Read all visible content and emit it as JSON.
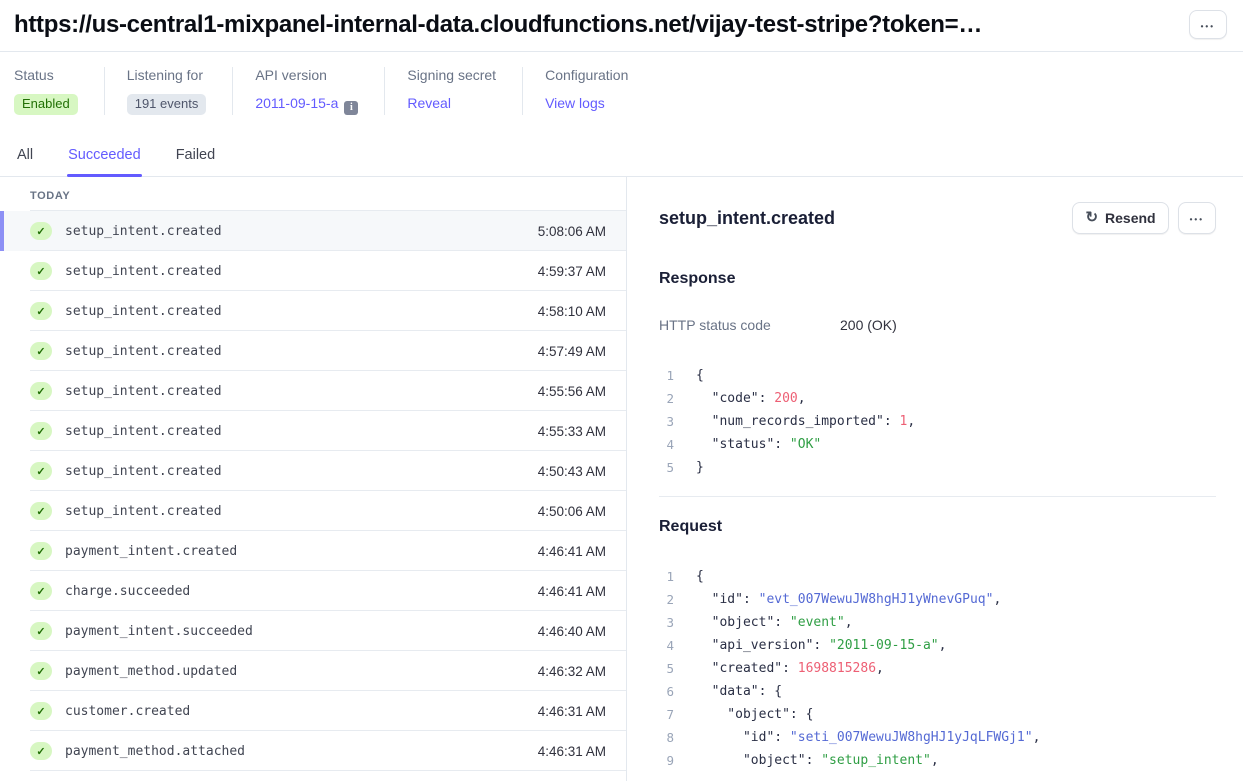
{
  "header": {
    "title": "https://us-central1-mixpanel-internal-data.cloudfunctions.net/vijay-test-stripe?token=…",
    "overflow_icon": "•••"
  },
  "meta": {
    "items": [
      {
        "name": "status",
        "label": "Status",
        "value": "Enabled",
        "kind": "badge-green"
      },
      {
        "name": "listening-for",
        "label": "Listening for",
        "value": "191 events",
        "kind": "badge-gray"
      },
      {
        "name": "api-version",
        "label": "API version",
        "value": "2011-09-15-a",
        "kind": "link",
        "info_icon": "i"
      },
      {
        "name": "signing-secret",
        "label": "Signing secret",
        "value": "Reveal",
        "kind": "link"
      },
      {
        "name": "configuration",
        "label": "Configuration",
        "value": "View logs",
        "kind": "link"
      }
    ]
  },
  "tabs": [
    {
      "name": "all",
      "label": "All",
      "active": false
    },
    {
      "name": "succeeded",
      "label": "Succeeded",
      "active": true
    },
    {
      "name": "failed",
      "label": "Failed",
      "active": false
    }
  ],
  "event_list": {
    "group_header": "TODAY",
    "check_icon": "✓",
    "rows": [
      {
        "event": "setup_intent.created",
        "time": "5:08:06 AM",
        "selected": true
      },
      {
        "event": "setup_intent.created",
        "time": "4:59:37 AM",
        "selected": false
      },
      {
        "event": "setup_intent.created",
        "time": "4:58:10 AM",
        "selected": false
      },
      {
        "event": "setup_intent.created",
        "time": "4:57:49 AM",
        "selected": false
      },
      {
        "event": "setup_intent.created",
        "time": "4:55:56 AM",
        "selected": false
      },
      {
        "event": "setup_intent.created",
        "time": "4:55:33 AM",
        "selected": false
      },
      {
        "event": "setup_intent.created",
        "time": "4:50:43 AM",
        "selected": false
      },
      {
        "event": "setup_intent.created",
        "time": "4:50:06 AM",
        "selected": false
      },
      {
        "event": "payment_intent.created",
        "time": "4:46:41 AM",
        "selected": false
      },
      {
        "event": "charge.succeeded",
        "time": "4:46:41 AM",
        "selected": false
      },
      {
        "event": "payment_intent.succeeded",
        "time": "4:46:40 AM",
        "selected": false
      },
      {
        "event": "payment_method.updated",
        "time": "4:46:32 AM",
        "selected": false
      },
      {
        "event": "customer.created",
        "time": "4:46:31 AM",
        "selected": false
      },
      {
        "event": "payment_method.attached",
        "time": "4:46:31 AM",
        "selected": false
      }
    ]
  },
  "detail": {
    "title": "setup_intent.created",
    "resend": {
      "icon": "↻",
      "label": "Resend"
    },
    "overflow_icon": "•••",
    "response": {
      "heading": "Response",
      "status_label": "HTTP status code",
      "status_value": "200 (OK)",
      "code": [
        [
          {
            "t": "{",
            "c": "p"
          }
        ],
        [
          {
            "t": "  \"code\": ",
            "c": "p"
          },
          {
            "t": "200",
            "c": "num"
          },
          {
            "t": ",",
            "c": "p"
          }
        ],
        [
          {
            "t": "  \"num_records_imported\": ",
            "c": "p"
          },
          {
            "t": "1",
            "c": "num"
          },
          {
            "t": ",",
            "c": "p"
          }
        ],
        [
          {
            "t": "  \"status\": ",
            "c": "p"
          },
          {
            "t": "\"OK\"",
            "c": "str"
          }
        ],
        [
          {
            "t": "}",
            "c": "p"
          }
        ]
      ]
    },
    "request": {
      "heading": "Request",
      "code": [
        [
          {
            "t": "{",
            "c": "p"
          }
        ],
        [
          {
            "t": "  \"id\": ",
            "c": "p"
          },
          {
            "t": "\"evt_007WewuJW8hgHJ1yWnevGPuq\"",
            "c": "id"
          },
          {
            "t": ",",
            "c": "p"
          }
        ],
        [
          {
            "t": "  \"object\": ",
            "c": "p"
          },
          {
            "t": "\"event\"",
            "c": "str"
          },
          {
            "t": ",",
            "c": "p"
          }
        ],
        [
          {
            "t": "  \"api_version\": ",
            "c": "p"
          },
          {
            "t": "\"2011-09-15-a\"",
            "c": "str"
          },
          {
            "t": ",",
            "c": "p"
          }
        ],
        [
          {
            "t": "  \"created\": ",
            "c": "p"
          },
          {
            "t": "1698815286",
            "c": "num"
          },
          {
            "t": ",",
            "c": "p"
          }
        ],
        [
          {
            "t": "  \"data\": {",
            "c": "p"
          }
        ],
        [
          {
            "t": "    \"object\": {",
            "c": "p"
          }
        ],
        [
          {
            "t": "      \"id\": ",
            "c": "p"
          },
          {
            "t": "\"seti_007WewuJW8hgHJ1yJqLFWGj1\"",
            "c": "id"
          },
          {
            "t": ",",
            "c": "p"
          }
        ],
        [
          {
            "t": "      \"object\": ",
            "c": "p"
          },
          {
            "t": "\"setup_intent\"",
            "c": "str"
          },
          {
            "t": ",",
            "c": "p"
          }
        ]
      ]
    }
  },
  "colors": {
    "accent": "#635bff",
    "badge_green_bg": "#d7f7c2",
    "badge_green_text": "#217005",
    "selected_bar": "#8d90f5",
    "code_number": "#ed5f74",
    "code_string": "#2f9e44",
    "code_id": "#5469d4"
  }
}
